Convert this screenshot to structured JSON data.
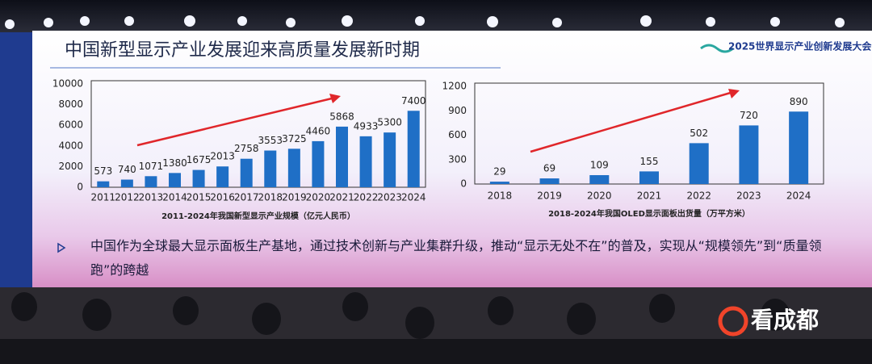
{
  "slide": {
    "title": "中国新型显示产业发展迎来高质量发展新时期",
    "logo": "2025世界显示产业创新发展大会",
    "bullet": "中国作为全球最大显示面板生产基地，通过技术创新与产业集群升级，推动“显示无处不在”的普及，实现从“规模领先”到“质量领跑”的跨越",
    "watermark": "看成都"
  },
  "chart_data": [
    {
      "type": "bar",
      "title": "2011-2024年我国新型显示产业规模（亿元人民币）",
      "categories": [
        "2011",
        "2012",
        "2013",
        "2014",
        "2015",
        "2016",
        "2017",
        "2018",
        "2019",
        "2020",
        "2021",
        "2022",
        "2023",
        "2024"
      ],
      "values": [
        573,
        740,
        1071,
        1380,
        1675,
        2013,
        2758,
        3553,
        3725,
        4460,
        5868,
        4933,
        5300,
        7400
      ],
      "color": "#1f6fc6",
      "ylim": [
        0,
        10000
      ],
      "yticks": [
        0,
        2000,
        4000,
        6000,
        8000,
        10000
      ]
    },
    {
      "type": "bar",
      "title": "2018-2024年我国OLED显示面板出货量（万平方米）",
      "categories": [
        "2018",
        "2019",
        "2020",
        "2021",
        "2022",
        "2023",
        "2024"
      ],
      "values": [
        29,
        69,
        109,
        155,
        502,
        720,
        890
      ],
      "color": "#1f6fc6",
      "ylim": [
        0,
        1200
      ],
      "yticks": [
        0,
        300,
        600,
        900,
        1200
      ]
    }
  ]
}
